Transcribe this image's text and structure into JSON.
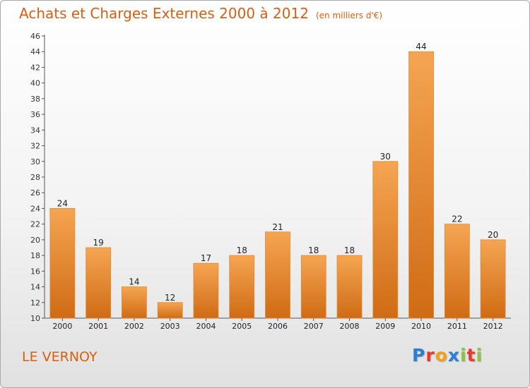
{
  "title": "Achats et Charges Externes 2000 à 2012",
  "subtitle": "(en milliers d'€)",
  "commune": "LE VERNOY",
  "logo": {
    "p": "P",
    "r": "r",
    "o": "o",
    "x": "x",
    "i1": "i",
    "t": "t",
    "i2": "i"
  },
  "colors": {
    "bar_top": "#f5a552",
    "bar_bottom": "#d06b14",
    "accent": "#d95f10",
    "logo_p": "#2a7fd4",
    "logo_r": "#e7392b",
    "logo_o": "#f3a21b",
    "logo_x": "#2a7fd4",
    "logo_i": "#8cc63f",
    "logo_t": "#e7392b"
  },
  "chart_data": {
    "type": "bar",
    "categories": [
      "2000",
      "2001",
      "2002",
      "2003",
      "2004",
      "2005",
      "2006",
      "2007",
      "2008",
      "2009",
      "2010",
      "2011",
      "2012"
    ],
    "values": [
      24,
      19,
      14,
      12,
      17,
      18,
      21,
      18,
      18,
      30,
      44,
      22,
      20
    ],
    "ylim": [
      10,
      46
    ],
    "ytick_step": 2,
    "grid": false,
    "xlabel": "",
    "ylabel": ""
  }
}
